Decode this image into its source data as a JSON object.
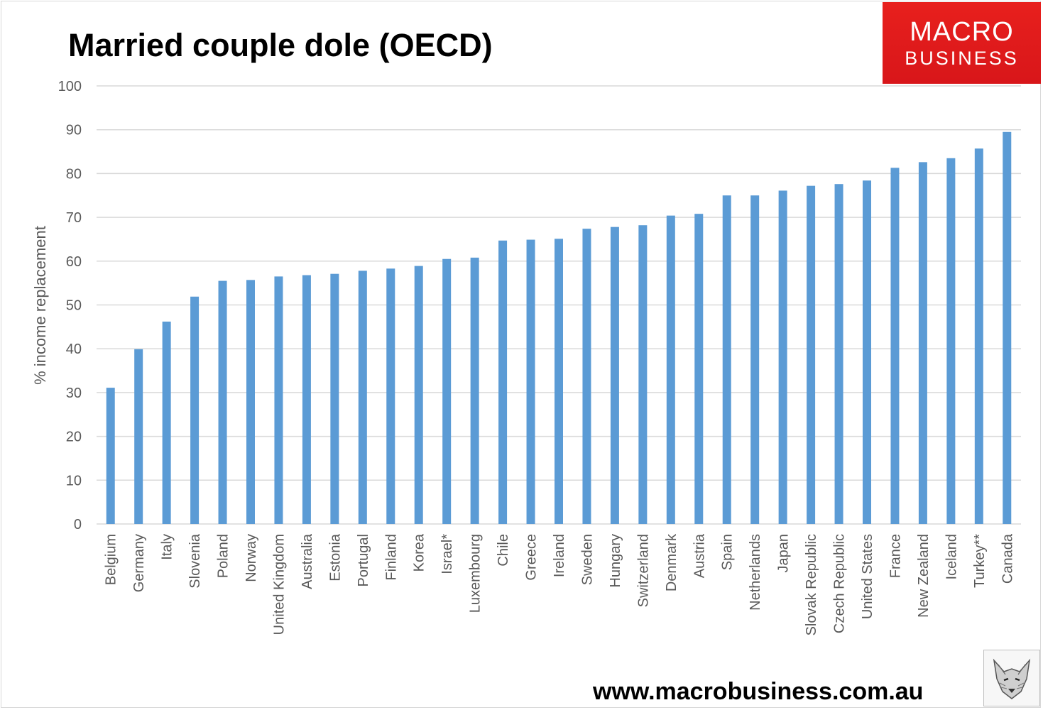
{
  "header": {
    "title": "Married couple dole (OECD)"
  },
  "logo": {
    "line1": "MACRO",
    "line2": "BUSINESS"
  },
  "footer": {
    "website": "www.macrobusiness.com.au"
  },
  "colors": {
    "bar": "#5b9bd5",
    "grid": "#d9d9d9",
    "logo_bg": "#e31b1b"
  },
  "chart_data": {
    "type": "bar",
    "title": "Married couple dole (OECD)",
    "xlabel": "",
    "ylabel": "% income replacement",
    "ylim": [
      0,
      100
    ],
    "yticks": [
      0,
      10,
      20,
      30,
      40,
      50,
      60,
      70,
      80,
      90,
      100
    ],
    "grid": true,
    "legend": "none",
    "categories": [
      "Belgium",
      "Germany",
      "Italy",
      "Slovenia",
      "Poland",
      "Norway",
      "United Kingdom",
      "Australia",
      "Estonia",
      "Portugal",
      "Finland",
      "Korea",
      "Israel*",
      "Luxembourg",
      "Chile",
      "Greece",
      "Ireland",
      "Sweden",
      "Hungary",
      "Switzerland",
      "Denmark",
      "Austria",
      "Spain",
      "Netherlands",
      "Japan",
      "Slovak Republic",
      "Czech Republic",
      "United States",
      "France",
      "New Zealand",
      "Iceland",
      "Turkey**",
      "Canada"
    ],
    "values": [
      31.1,
      39.9,
      46.2,
      51.9,
      55.5,
      55.7,
      56.5,
      56.8,
      57.1,
      57.8,
      58.3,
      58.9,
      60.5,
      60.8,
      64.7,
      64.9,
      65.1,
      67.4,
      67.8,
      68.2,
      70.4,
      70.8,
      75.0,
      75.0,
      76.1,
      77.2,
      77.6,
      78.4,
      81.3,
      82.6,
      83.5,
      85.7,
      89.5
    ]
  }
}
